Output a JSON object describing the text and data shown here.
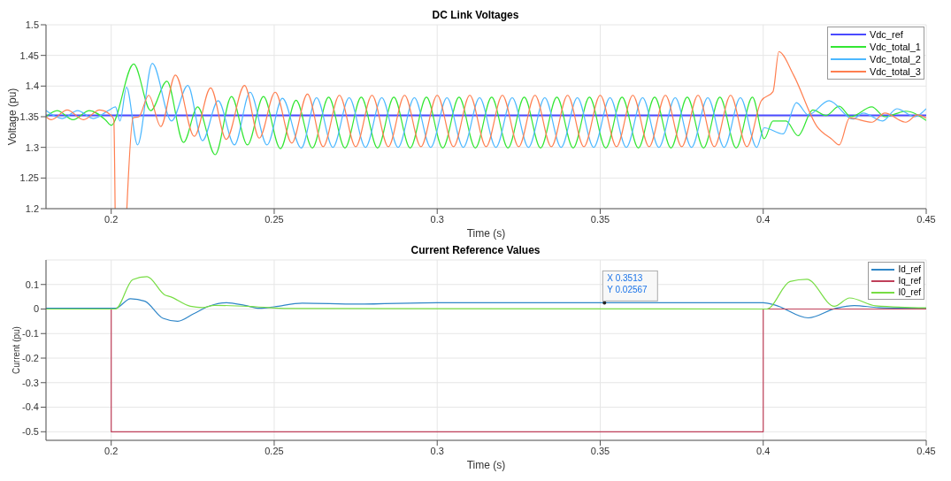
{
  "chart_data": [
    {
      "type": "line",
      "title": "DC Link Voltages",
      "xlabel": "Time (s)",
      "ylabel": "Voltage (pu)",
      "xlim": [
        0.18,
        0.45
      ],
      "xticks": [
        0.2,
        0.25,
        0.3,
        0.35,
        0.4,
        0.45
      ],
      "ylim": [
        1.2,
        1.5
      ],
      "yticks": [
        1.2,
        1.25,
        1.3,
        1.35,
        1.4,
        1.45,
        1.5
      ],
      "grid": true,
      "legend": "top right",
      "series": [
        {
          "name": "Vdc_ref",
          "color": "#4a4aff",
          "x": [
            0.18,
            0.45
          ],
          "values": [
            1.352,
            1.352
          ]
        },
        {
          "name": "Vdc_total_1",
          "color": "#33e633",
          "x": [
            0.18,
            0.1834,
            0.1883,
            0.1933,
            0.1982,
            0.2,
            0.2069,
            0.2121,
            0.2171,
            0.2222,
            0.2265,
            0.2319,
            0.2369,
            0.2418,
            0.2467,
            0.2519,
            0.2567,
            0.2617,
            0.2667,
            0.2717,
            0.2767,
            0.2817,
            0.2867,
            0.2917,
            0.2967,
            0.3017,
            0.3067,
            0.3117,
            0.3167,
            0.3217,
            0.3267,
            0.3317,
            0.3367,
            0.3417,
            0.3467,
            0.3517,
            0.3567,
            0.3617,
            0.3667,
            0.3717,
            0.3767,
            0.3817,
            0.3867,
            0.3917,
            0.3967,
            0.4003,
            0.403,
            0.407,
            0.4107,
            0.4152,
            0.4193,
            0.4233,
            0.4269,
            0.4333,
            0.4373,
            0.4437,
            0.45
          ],
          "values": [
            1.35,
            1.36,
            1.345,
            1.36,
            1.345,
            1.336,
            1.436,
            1.36,
            1.408,
            1.308,
            1.366,
            1.288,
            1.383,
            1.304,
            1.383,
            1.298,
            1.377,
            1.299,
            1.382,
            1.299,
            1.382,
            1.299,
            1.382,
            1.299,
            1.382,
            1.299,
            1.382,
            1.299,
            1.382,
            1.299,
            1.382,
            1.299,
            1.382,
            1.299,
            1.382,
            1.299,
            1.382,
            1.299,
            1.382,
            1.299,
            1.382,
            1.299,
            1.382,
            1.299,
            1.382,
            1.314,
            1.343,
            1.343,
            1.319,
            1.361,
            1.352,
            1.367,
            1.35,
            1.366,
            1.35,
            1.359,
            1.344
          ]
        },
        {
          "name": "Vdc_total_2",
          "color": "#4db8ff",
          "x": [
            0.18,
            0.185,
            0.1897,
            0.1945,
            0.1991,
            0.2013,
            0.2027,
            0.2047,
            0.2081,
            0.2126,
            0.2185,
            0.2235,
            0.228,
            0.2328,
            0.2378,
            0.2426,
            0.2478,
            0.2525,
            0.2583,
            0.263,
            0.268,
            0.273,
            0.278,
            0.283,
            0.288,
            0.293,
            0.298,
            0.303,
            0.308,
            0.313,
            0.318,
            0.323,
            0.328,
            0.333,
            0.338,
            0.343,
            0.348,
            0.353,
            0.358,
            0.363,
            0.368,
            0.373,
            0.378,
            0.383,
            0.388,
            0.393,
            0.398,
            0.4003,
            0.4061,
            0.4102,
            0.4138,
            0.4202,
            0.4275,
            0.4307,
            0.4366,
            0.441,
            0.4465,
            0.45
          ],
          "values": [
            1.36,
            1.347,
            1.36,
            1.347,
            1.36,
            1.366,
            1.343,
            1.398,
            1.304,
            1.437,
            1.343,
            1.401,
            1.311,
            1.376,
            1.304,
            1.39,
            1.304,
            1.38,
            1.299,
            1.381,
            1.3,
            1.381,
            1.3,
            1.381,
            1.3,
            1.381,
            1.3,
            1.381,
            1.3,
            1.381,
            1.3,
            1.381,
            1.3,
            1.381,
            1.3,
            1.381,
            1.3,
            1.381,
            1.3,
            1.381,
            1.3,
            1.381,
            1.3,
            1.381,
            1.3,
            1.381,
            1.3,
            1.332,
            1.322,
            1.373,
            1.353,
            1.376,
            1.346,
            1.356,
            1.343,
            1.363,
            1.35,
            1.363
          ]
        },
        {
          "name": "Vdc_total_3",
          "color": "#ff7f50",
          "x": [
            0.18,
            0.1816,
            0.1865,
            0.1915,
            0.1964,
            0.2,
            0.2008,
            0.2012,
            0.203,
            0.2048,
            0.2067,
            0.2085,
            0.2115,
            0.2152,
            0.2197,
            0.2255,
            0.2305,
            0.2353,
            0.2409,
            0.2454,
            0.2503,
            0.2554,
            0.2602,
            0.265,
            0.27,
            0.275,
            0.28,
            0.285,
            0.29,
            0.295,
            0.3,
            0.305,
            0.31,
            0.315,
            0.32,
            0.325,
            0.33,
            0.335,
            0.34,
            0.345,
            0.35,
            0.355,
            0.36,
            0.365,
            0.37,
            0.375,
            0.38,
            0.385,
            0.39,
            0.395,
            0.3994,
            0.403,
            0.4048,
            0.4093,
            0.4165,
            0.4211,
            0.4233,
            0.4265,
            0.4333,
            0.4373,
            0.4437,
            0.4473,
            0.45
          ],
          "values": [
            1.35,
            1.345,
            1.361,
            1.345,
            1.361,
            1.352,
            1.345,
            1.2,
            null,
            1.2,
            1.348,
            1.35,
            1.385,
            1.334,
            1.418,
            1.318,
            1.397,
            1.313,
            1.401,
            1.315,
            1.39,
            1.307,
            1.387,
            1.301,
            1.385,
            1.301,
            1.385,
            1.301,
            1.385,
            1.301,
            1.385,
            1.301,
            1.385,
            1.301,
            1.385,
            1.301,
            1.385,
            1.301,
            1.385,
            1.301,
            1.385,
            1.301,
            1.385,
            1.301,
            1.385,
            1.301,
            1.385,
            1.301,
            1.385,
            1.301,
            1.376,
            1.391,
            1.456,
            1.418,
            1.334,
            1.313,
            1.304,
            1.348,
            1.341,
            1.356,
            1.341,
            1.353,
            1.348
          ]
        }
      ]
    },
    {
      "type": "line",
      "title": "Current Reference Values",
      "xlabel": "Time (s)",
      "ylabel": "Current (pu)",
      "xlim": [
        0.18,
        0.45
      ],
      "xticks": [
        0.2,
        0.25,
        0.3,
        0.35,
        0.4,
        0.45
      ],
      "ylim": [
        -0.535,
        0.2
      ],
      "yticks": [
        -0.5,
        -0.4,
        -0.3,
        -0.2,
        -0.1,
        0,
        0.1
      ],
      "grid": true,
      "legend": "top right",
      "annotations": [
        {
          "text": "X 0.3513\nY 0.02567",
          "x": 0.3513,
          "y": 0.02567
        }
      ],
      "series": [
        {
          "name": "Id_ref",
          "color": "#2f86c8",
          "x": [
            0.18,
            0.2,
            0.2013,
            0.2059,
            0.2103,
            0.2159,
            0.2204,
            0.2252,
            0.2298,
            0.2354,
            0.241,
            0.2456,
            0.25,
            0.2586,
            0.2754,
            0.3,
            0.4,
            0.4035,
            0.4138,
            0.4223,
            0.4279,
            0.4354,
            0.45
          ],
          "values": [
            0.003,
            0.003,
            0.003,
            0.042,
            0.032,
            -0.038,
            -0.05,
            -0.02,
            0.011,
            0.026,
            0.015,
            0.003,
            0.009,
            0.024,
            0.02,
            0.026,
            0.026,
            0.017,
            -0.036,
            0.003,
            0.014,
            0.006,
            0.003
          ]
        },
        {
          "name": "Iq_ref",
          "type": "step",
          "color": "#c0405a",
          "x": [
            0.18,
            0.2,
            0.4,
            0.45
          ],
          "values": [
            0,
            -0.5,
            0,
            0
          ]
        },
        {
          "name": "I0_ref",
          "color": "#77dd44",
          "x": [
            0.18,
            0.2013,
            0.2066,
            0.211,
            0.2164,
            0.2182,
            0.2243,
            0.228,
            0.2317,
            0.2447,
            0.254,
            0.4011,
            0.4082,
            0.4134,
            0.4218,
            0.4265,
            0.4345,
            0.45
          ],
          "values": [
            0,
            0,
            0.12,
            0.132,
            0.058,
            0.05,
            0.011,
            0.006,
            0.015,
            0.009,
            0.002,
            0,
            0.112,
            0.121,
            0.011,
            0.045,
            0.013,
            0.005
          ]
        }
      ]
    }
  ]
}
